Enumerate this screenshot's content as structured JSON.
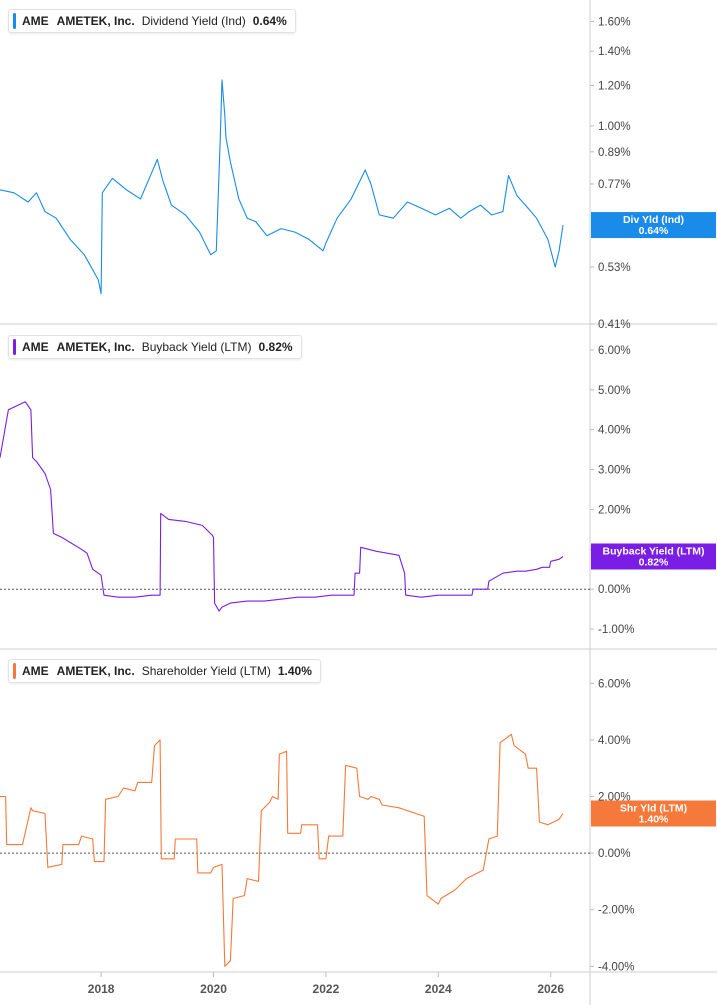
{
  "panels": [
    {
      "ticker": "AME",
      "company": "AMETEK, Inc.",
      "metric": "Dividend Yield (Ind)",
      "value_label": "0.64%",
      "color": "#1a8be8",
      "tag": {
        "line1": "Div Yld (Ind)",
        "line2": "0.64%"
      },
      "yticks": [
        {
          "v": 0.41,
          "label": "0.41%"
        },
        {
          "v": 0.53,
          "label": "0.53%"
        },
        {
          "v": 0.77,
          "label": "0.77%"
        },
        {
          "v": 0.89,
          "label": "0.89%"
        },
        {
          "v": 1.0,
          "label": "1.00%"
        },
        {
          "v": 1.2,
          "label": "1.20%"
        },
        {
          "v": 1.4,
          "label": "1.40%"
        },
        {
          "v": 1.6,
          "label": "1.60%"
        }
      ],
      "zero_line": false
    },
    {
      "ticker": "AME",
      "company": "AMETEK, Inc.",
      "metric": "Buyback Yield (LTM)",
      "value_label": "0.82%",
      "color": "#7a1ee6",
      "tag": {
        "line1": "Buyback Yield (LTM)",
        "line2": "0.82%"
      },
      "yticks": [
        {
          "v": -1,
          "label": "-1.00%"
        },
        {
          "v": 0,
          "label": "0.00%"
        },
        {
          "v": 1,
          "label": "1.00%"
        },
        {
          "v": 2,
          "label": "2.00%"
        },
        {
          "v": 3,
          "label": "3.00%"
        },
        {
          "v": 4,
          "label": "4.00%"
        },
        {
          "v": 5,
          "label": "5.00%"
        },
        {
          "v": 6,
          "label": "6.00%"
        }
      ],
      "zero_line": true
    },
    {
      "ticker": "AME",
      "company": "AMETEK, Inc.",
      "metric": "Shareholder Yield (LTM)",
      "value_label": "1.40%",
      "color": "#f5793a",
      "tag": {
        "line1": "Shr Yld (LTM)",
        "line2": "1.40%"
      },
      "yticks": [
        {
          "v": -4,
          "label": "-4.00%"
        },
        {
          "v": -2,
          "label": "-2.00%"
        },
        {
          "v": 0,
          "label": "0.00%"
        },
        {
          "v": 2,
          "label": "2.00%"
        },
        {
          "v": 4,
          "label": "4.00%"
        },
        {
          "v": 6,
          "label": "6.00%"
        }
      ],
      "zero_line": true
    }
  ],
  "x_axis": {
    "ticks": [
      "2018",
      "2020",
      "2022",
      "2024",
      "2026"
    ]
  },
  "chart_data": [
    {
      "type": "line",
      "xlim": [
        2016.2,
        2026.7
      ],
      "ylim": [
        0.41,
        1.7
      ],
      "log_scale": true,
      "series": [
        {
          "name": "Dividend Yield (Ind)",
          "x": [
            2016.2,
            2016.45,
            2016.7,
            2016.85,
            2017.0,
            2017.2,
            2017.45,
            2017.7,
            2017.95,
            2018.0,
            2018.02,
            2018.2,
            2018.45,
            2018.7,
            2018.9,
            2019.0,
            2019.1,
            2019.25,
            2019.5,
            2019.75,
            2019.95,
            2020.05,
            2020.12,
            2020.15,
            2020.2,
            2020.22,
            2020.3,
            2020.45,
            2020.6,
            2020.75,
            2020.95,
            2021.2,
            2021.45,
            2021.7,
            2021.95,
            2022.0,
            2022.2,
            2022.45,
            2022.7,
            2022.8,
            2022.95,
            2023.2,
            2023.45,
            2023.7,
            2023.95,
            2024.2,
            2024.4,
            2024.55,
            2024.75,
            2024.95,
            2025.15,
            2025.25,
            2025.4,
            2025.55,
            2025.75,
            2025.95,
            2026.08,
            2026.15,
            2026.22
          ],
          "y": [
            0.75,
            0.74,
            0.71,
            0.74,
            0.68,
            0.66,
            0.6,
            0.56,
            0.5,
            0.47,
            0.74,
            0.79,
            0.75,
            0.72,
            0.81,
            0.86,
            0.78,
            0.7,
            0.67,
            0.62,
            0.56,
            0.57,
            0.95,
            1.23,
            1.05,
            0.95,
            0.85,
            0.72,
            0.66,
            0.65,
            0.61,
            0.63,
            0.62,
            0.6,
            0.57,
            0.59,
            0.66,
            0.72,
            0.82,
            0.77,
            0.67,
            0.66,
            0.71,
            0.69,
            0.67,
            0.69,
            0.66,
            0.68,
            0.7,
            0.67,
            0.68,
            0.8,
            0.73,
            0.7,
            0.66,
            0.6,
            0.53,
            0.57,
            0.64
          ]
        }
      ]
    },
    {
      "type": "line",
      "xlim": [
        2016.2,
        2026.7
      ],
      "ylim": [
        -1.5,
        6.5
      ],
      "series": [
        {
          "name": "Buyback Yield (LTM)",
          "x": [
            2016.2,
            2016.35,
            2016.5,
            2016.65,
            2016.75,
            2016.78,
            2016.85,
            2017.0,
            2017.1,
            2017.15,
            2017.3,
            2017.65,
            2017.75,
            2017.85,
            2018.0,
            2018.05,
            2018.3,
            2018.6,
            2018.9,
            2019.05,
            2019.06,
            2019.2,
            2019.5,
            2019.8,
            2019.98,
            2020.0,
            2020.02,
            2020.1,
            2020.15,
            2020.3,
            2020.6,
            2020.9,
            2021.2,
            2021.5,
            2021.8,
            2022.1,
            2022.35,
            2022.5,
            2022.52,
            2022.6,
            2022.62,
            2022.9,
            2023.1,
            2023.3,
            2023.4,
            2023.42,
            2023.7,
            2024.0,
            2024.3,
            2024.6,
            2024.62,
            2024.75,
            2024.88,
            2024.9,
            2025.15,
            2025.4,
            2025.55,
            2025.75,
            2025.85,
            2025.98,
            2026.0,
            2026.15,
            2026.22
          ],
          "y": [
            3.3,
            4.5,
            4.6,
            4.7,
            4.5,
            3.3,
            3.2,
            2.9,
            2.5,
            1.4,
            1.3,
            1.0,
            0.9,
            0.5,
            0.35,
            -0.15,
            -0.2,
            -0.2,
            -0.15,
            -0.15,
            1.9,
            1.75,
            1.7,
            1.6,
            1.35,
            1.3,
            -0.35,
            -0.55,
            -0.45,
            -0.35,
            -0.3,
            -0.3,
            -0.25,
            -0.2,
            -0.2,
            -0.15,
            -0.15,
            -0.15,
            0.4,
            0.4,
            1.05,
            0.95,
            0.9,
            0.85,
            0.4,
            -0.15,
            -0.2,
            -0.15,
            -0.15,
            -0.15,
            0.0,
            0.0,
            0.0,
            0.2,
            0.4,
            0.45,
            0.45,
            0.5,
            0.55,
            0.55,
            0.7,
            0.75,
            0.82
          ]
        }
      ]
    },
    {
      "type": "line",
      "xlim": [
        2016.2,
        2026.7
      ],
      "ylim": [
        -4.2,
        7.0
      ],
      "series": [
        {
          "name": "Shareholder Yield (LTM)",
          "x": [
            2016.2,
            2016.3,
            2016.32,
            2016.6,
            2016.75,
            2016.78,
            2017.0,
            2017.05,
            2017.3,
            2017.32,
            2017.6,
            2017.65,
            2017.85,
            2017.88,
            2018.05,
            2018.08,
            2018.3,
            2018.4,
            2018.6,
            2018.65,
            2018.9,
            2018.95,
            2019.05,
            2019.07,
            2019.3,
            2019.32,
            2019.7,
            2019.72,
            2019.95,
            2020.0,
            2020.15,
            2020.2,
            2020.3,
            2020.35,
            2020.55,
            2020.6,
            2020.8,
            2020.85,
            2021.0,
            2021.05,
            2021.15,
            2021.17,
            2021.3,
            2021.32,
            2021.55,
            2021.57,
            2021.85,
            2021.88,
            2022.0,
            2022.05,
            2022.3,
            2022.35,
            2022.55,
            2022.6,
            2022.75,
            2022.8,
            2022.95,
            2023.0,
            2023.3,
            2023.6,
            2023.75,
            2023.8,
            2024.0,
            2024.05,
            2024.3,
            2024.5,
            2024.8,
            2024.9,
            2025.05,
            2025.1,
            2025.3,
            2025.35,
            2025.55,
            2025.6,
            2025.75,
            2025.8,
            2025.95,
            2026.05,
            2026.15,
            2026.22
          ],
          "y": [
            2.0,
            2.0,
            0.3,
            0.3,
            1.6,
            1.5,
            1.4,
            -0.5,
            -0.4,
            0.3,
            0.3,
            0.6,
            0.5,
            -0.3,
            -0.3,
            1.9,
            2.0,
            2.3,
            2.2,
            2.5,
            2.5,
            3.8,
            4.0,
            -0.2,
            -0.2,
            0.5,
            0.5,
            -0.7,
            -0.7,
            -0.5,
            -0.4,
            -4.0,
            -3.8,
            -1.6,
            -1.5,
            -0.9,
            -1.0,
            1.5,
            1.8,
            2.0,
            1.9,
            3.5,
            3.6,
            0.7,
            0.7,
            1.0,
            1.0,
            -0.2,
            -0.2,
            0.6,
            0.6,
            3.1,
            3.0,
            2.0,
            1.9,
            2.0,
            1.9,
            1.7,
            1.6,
            1.4,
            1.3,
            -1.5,
            -1.8,
            -1.6,
            -1.3,
            -0.9,
            -0.6,
            0.5,
            0.6,
            3.9,
            4.2,
            3.8,
            3.5,
            3.0,
            3.0,
            1.1,
            1.0,
            1.1,
            1.2,
            1.4
          ]
        }
      ]
    }
  ]
}
